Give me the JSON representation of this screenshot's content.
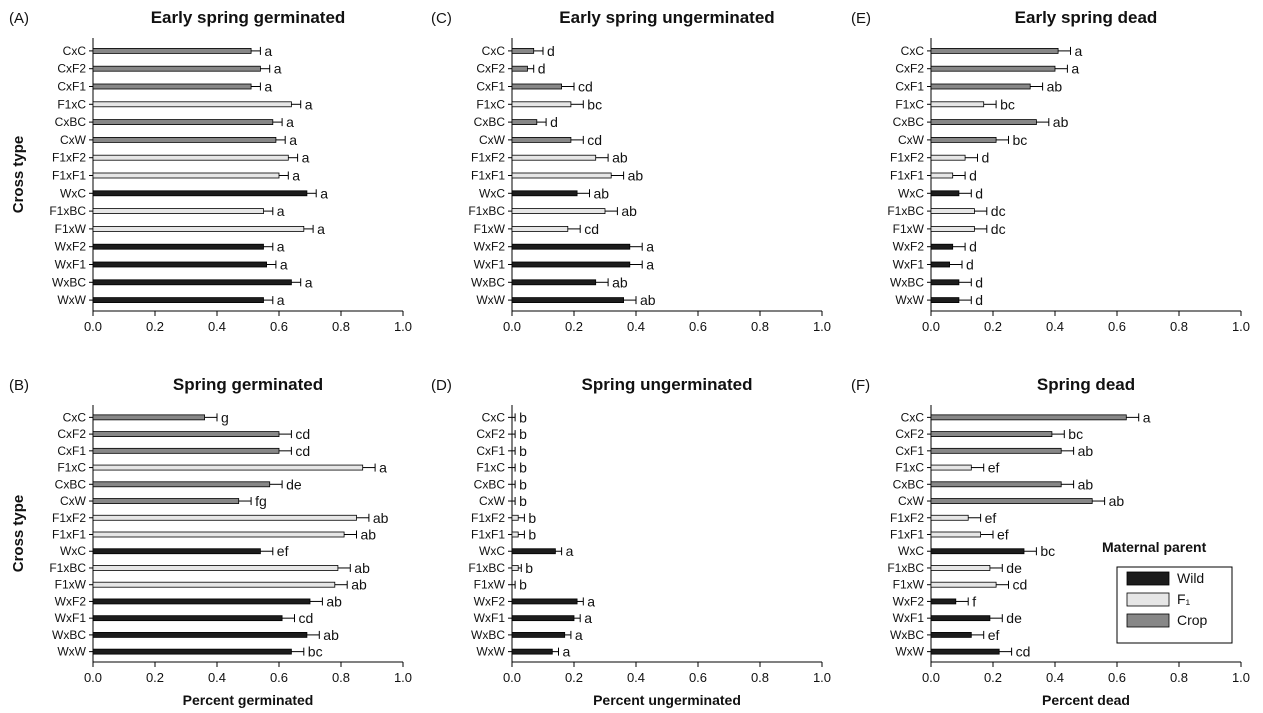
{
  "chart_data": [
    {
      "type": "bar",
      "panel": "(A)",
      "title": "Early spring germinated",
      "xlabel": "",
      "ylabel": "Cross type",
      "xlim": [
        0,
        1
      ],
      "xticks": [
        "0.0",
        "0.2",
        "0.4",
        "0.6",
        "0.8",
        "1.0"
      ],
      "categories": [
        "CxC",
        "CxF2",
        "CxF1",
        "F1xC",
        "CxBC",
        "CxW",
        "F1xF2",
        "F1xF1",
        "WxC",
        "F1xBC",
        "F1xW",
        "WxF2",
        "WxF1",
        "WxBC",
        "WxW"
      ],
      "maternal": [
        "Crop",
        "Crop",
        "Crop",
        "F1",
        "Crop",
        "Crop",
        "F1",
        "F1",
        "Wild",
        "F1",
        "F1",
        "Wild",
        "Wild",
        "Wild",
        "Wild"
      ],
      "values": [
        0.51,
        0.54,
        0.51,
        0.64,
        0.58,
        0.59,
        0.63,
        0.6,
        0.69,
        0.55,
        0.68,
        0.55,
        0.56,
        0.64,
        0.55
      ],
      "errors": [
        0.03,
        0.03,
        0.03,
        0.03,
        0.03,
        0.03,
        0.03,
        0.03,
        0.03,
        0.03,
        0.03,
        0.03,
        0.03,
        0.03,
        0.03
      ],
      "letters": [
        "a",
        "a",
        "a",
        "a",
        "a",
        "a",
        "a",
        "a",
        "a",
        "a",
        "a",
        "a",
        "a",
        "a",
        "a"
      ]
    },
    {
      "type": "bar",
      "panel": "(C)",
      "title": "Early spring ungerminated",
      "xlabel": "",
      "ylabel": "",
      "xlim": [
        0,
        1
      ],
      "xticks": [
        "0.0",
        "0.2",
        "0.4",
        "0.6",
        "0.8",
        "1.0"
      ],
      "categories": [
        "CxC",
        "CxF2",
        "CxF1",
        "F1xC",
        "CxBC",
        "CxW",
        "F1xF2",
        "F1xF1",
        "WxC",
        "F1xBC",
        "F1xW",
        "WxF2",
        "WxF1",
        "WxBC",
        "WxW"
      ],
      "maternal": [
        "Crop",
        "Crop",
        "Crop",
        "F1",
        "Crop",
        "Crop",
        "F1",
        "F1",
        "Wild",
        "F1",
        "F1",
        "Wild",
        "Wild",
        "Wild",
        "Wild"
      ],
      "values": [
        0.07,
        0.05,
        0.16,
        0.19,
        0.08,
        0.19,
        0.27,
        0.32,
        0.21,
        0.3,
        0.18,
        0.38,
        0.38,
        0.27,
        0.36
      ],
      "errors": [
        0.03,
        0.02,
        0.04,
        0.04,
        0.03,
        0.04,
        0.04,
        0.04,
        0.04,
        0.04,
        0.04,
        0.04,
        0.04,
        0.04,
        0.04
      ],
      "letters": [
        "d",
        "d",
        "cd",
        "bc",
        "d",
        "cd",
        "ab",
        "ab",
        "ab",
        "ab",
        "cd",
        "a",
        "a",
        "ab",
        "ab"
      ]
    },
    {
      "type": "bar",
      "panel": "(E)",
      "title": "Early spring dead",
      "xlabel": "",
      "ylabel": "",
      "xlim": [
        0,
        1
      ],
      "xticks": [
        "0.0",
        "0.2",
        "0.4",
        "0.6",
        "0.8",
        "1.0"
      ],
      "categories": [
        "CxC",
        "CxF2",
        "CxF1",
        "F1xC",
        "CxBC",
        "CxW",
        "F1xF2",
        "F1xF1",
        "WxC",
        "F1xBC",
        "F1xW",
        "WxF2",
        "WxF1",
        "WxBC",
        "WxW"
      ],
      "maternal": [
        "Crop",
        "Crop",
        "Crop",
        "F1",
        "Crop",
        "Crop",
        "F1",
        "F1",
        "Wild",
        "F1",
        "F1",
        "Wild",
        "Wild",
        "Wild",
        "Wild"
      ],
      "values": [
        0.41,
        0.4,
        0.32,
        0.17,
        0.34,
        0.21,
        0.11,
        0.07,
        0.09,
        0.14,
        0.14,
        0.07,
        0.06,
        0.09,
        0.09
      ],
      "errors": [
        0.04,
        0.04,
        0.04,
        0.04,
        0.04,
        0.04,
        0.04,
        0.04,
        0.04,
        0.04,
        0.04,
        0.04,
        0.04,
        0.04,
        0.04
      ],
      "letters": [
        "a",
        "a",
        "ab",
        "bc",
        "ab",
        "bc",
        "d",
        "d",
        "d",
        "dc",
        "dc",
        "d",
        "d",
        "d",
        "d"
      ]
    },
    {
      "type": "bar",
      "panel": "(B)",
      "title": "Spring germinated",
      "xlabel": "Percent germinated",
      "ylabel": "Cross type",
      "xlim": [
        0,
        1
      ],
      "xticks": [
        "0.0",
        "0.2",
        "0.4",
        "0.6",
        "0.8",
        "1.0"
      ],
      "categories": [
        "CxC",
        "CxF2",
        "CxF1",
        "F1xC",
        "CxBC",
        "CxW",
        "F1xF2",
        "F1xF1",
        "WxC",
        "F1xBC",
        "F1xW",
        "WxF2",
        "WxF1",
        "WxBC",
        "WxW"
      ],
      "maternal": [
        "Crop",
        "Crop",
        "Crop",
        "F1",
        "Crop",
        "Crop",
        "F1",
        "F1",
        "Wild",
        "F1",
        "F1",
        "Wild",
        "Wild",
        "Wild",
        "Wild"
      ],
      "values": [
        0.36,
        0.6,
        0.6,
        0.87,
        0.57,
        0.47,
        0.85,
        0.81,
        0.54,
        0.79,
        0.78,
        0.7,
        0.61,
        0.69,
        0.64
      ],
      "errors": [
        0.04,
        0.04,
        0.04,
        0.04,
        0.04,
        0.04,
        0.04,
        0.04,
        0.04,
        0.04,
        0.04,
        0.04,
        0.04,
        0.04,
        0.04
      ],
      "letters": [
        "g",
        "cd",
        "cd",
        "a",
        "de",
        "fg",
        "ab",
        "ab",
        "ef",
        "ab",
        "ab",
        "ab",
        "cd",
        "ab",
        "bc"
      ]
    },
    {
      "type": "bar",
      "panel": "(D)",
      "title": "Spring ungerminated",
      "xlabel": "Percent ungerminated",
      "ylabel": "",
      "xlim": [
        0,
        1
      ],
      "xticks": [
        "0.0",
        "0.2",
        "0.4",
        "0.6",
        "0.8",
        "1.0"
      ],
      "categories": [
        "CxC",
        "CxF2",
        "CxF1",
        "F1xC",
        "CxBC",
        "CxW",
        "F1xF2",
        "F1xF1",
        "WxC",
        "F1xBC",
        "F1xW",
        "WxF2",
        "WxF1",
        "WxBC",
        "WxW"
      ],
      "maternal": [
        "Crop",
        "Crop",
        "Crop",
        "F1",
        "Crop",
        "Crop",
        "F1",
        "F1",
        "Wild",
        "F1",
        "F1",
        "Wild",
        "Wild",
        "Wild",
        "Wild"
      ],
      "values": [
        0.0,
        0.0,
        0.0,
        0.0,
        0.0,
        0.0,
        0.02,
        0.02,
        0.14,
        0.02,
        0.0,
        0.21,
        0.2,
        0.17,
        0.13
      ],
      "errors": [
        0.01,
        0.01,
        0.01,
        0.01,
        0.01,
        0.01,
        0.02,
        0.02,
        0.02,
        0.01,
        0.01,
        0.02,
        0.02,
        0.02,
        0.02
      ],
      "letters": [
        "b",
        "b",
        "b",
        "b",
        "b",
        "b",
        "b",
        "b",
        "a",
        "b",
        "b",
        "a",
        "a",
        "a",
        "a"
      ]
    },
    {
      "type": "bar",
      "panel": "(F)",
      "title": "Spring dead",
      "xlabel": "Percent dead",
      "ylabel": "",
      "xlim": [
        0,
        1
      ],
      "xticks": [
        "0.0",
        "0.2",
        "0.4",
        "0.6",
        "0.8",
        "1.0"
      ],
      "categories": [
        "CxC",
        "CxF2",
        "CxF1",
        "F1xC",
        "CxBC",
        "CxW",
        "F1xF2",
        "F1xF1",
        "WxC",
        "F1xBC",
        "F1xW",
        "WxF2",
        "WxF1",
        "WxBC",
        "WxW"
      ],
      "maternal": [
        "Crop",
        "Crop",
        "Crop",
        "F1",
        "Crop",
        "Crop",
        "F1",
        "F1",
        "Wild",
        "F1",
        "F1",
        "Wild",
        "Wild",
        "Wild",
        "Wild"
      ],
      "values": [
        0.63,
        0.39,
        0.42,
        0.13,
        0.42,
        0.52,
        0.12,
        0.16,
        0.3,
        0.19,
        0.21,
        0.08,
        0.19,
        0.13,
        0.22
      ],
      "errors": [
        0.04,
        0.04,
        0.04,
        0.04,
        0.04,
        0.04,
        0.04,
        0.04,
        0.04,
        0.04,
        0.04,
        0.04,
        0.04,
        0.04,
        0.04
      ],
      "letters": [
        "a",
        "bc",
        "ab",
        "ef",
        "ab",
        "ab",
        "ef",
        "ef",
        "bc",
        "de",
        "cd",
        "f",
        "de",
        "ef",
        "cd"
      ],
      "legend": {
        "title": "Maternal parent",
        "items": [
          {
            "key": "Wild",
            "label": "Wild"
          },
          {
            "key": "F1",
            "label": "F₁"
          },
          {
            "key": "Crop",
            "label": "Crop"
          }
        ]
      }
    }
  ],
  "colors": {
    "Wild": "#1c1c1c",
    "F1": "#e6e6e6",
    "Crop": "#878787",
    "axis": "#000000"
  }
}
